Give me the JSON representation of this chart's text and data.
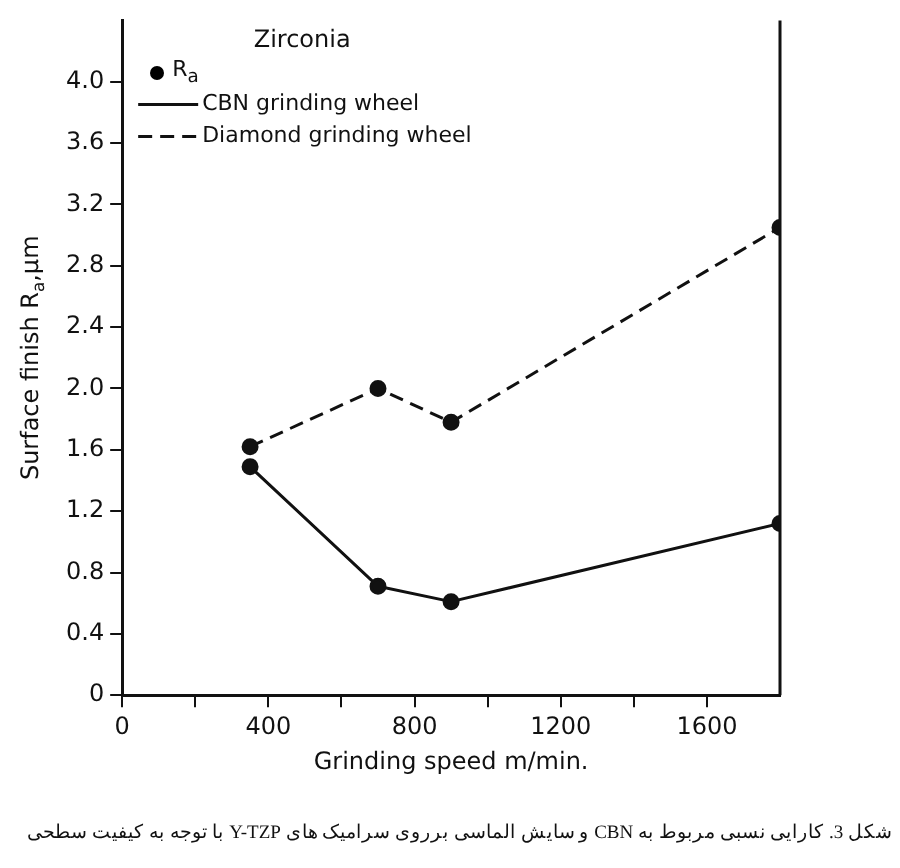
{
  "chart_data": {
    "type": "line",
    "title": "Zirconia",
    "xlabel": "Grinding speed m/min.",
    "ylabel": "Surface finish R$_{a}$,μm",
    "x": [
      350,
      700,
      900,
      1800
    ],
    "series": [
      {
        "name": "CBN grinding wheel",
        "color": "#111111",
        "values": [
          1.49,
          0.71,
          0.61,
          1.12
        ],
        "line_style": "solid"
      },
      {
        "name": "Diamond grinding wheel",
        "color": "#111111",
        "values": [
          1.62,
          2.0,
          1.78,
          3.05
        ],
        "line_style": "dashed"
      }
    ],
    "xlim": [
      0,
      1800
    ],
    "xticks": [
      0,
      {
        "value": 200,
        "label": null
      },
      400,
      {
        "value": 600,
        "label": null
      },
      800,
      {
        "value": 1000,
        "label": null
      },
      1200,
      {
        "value": 1400,
        "label": null
      },
      1600
    ],
    "ylim": [
      0,
      4.4
    ],
    "yticks": [
      0,
      0.4,
      0.8,
      1.2,
      1.6,
      {
        "value": 2,
        "label": "2.0"
      },
      2.4,
      2.8,
      3.2,
      3.6,
      {
        "value": 4,
        "label": "4.0"
      }
    ],
    "marker": "circle",
    "grid": false,
    "legend": "top left",
    "annotations": [
      "R$_{a}$",
      "شکل 3. کارایی نسبی مربوط به CBN و سایش الماسی برروی سرامیک های Y-TZP با توجه به کیفیت سطحی"
    ]
  }
}
